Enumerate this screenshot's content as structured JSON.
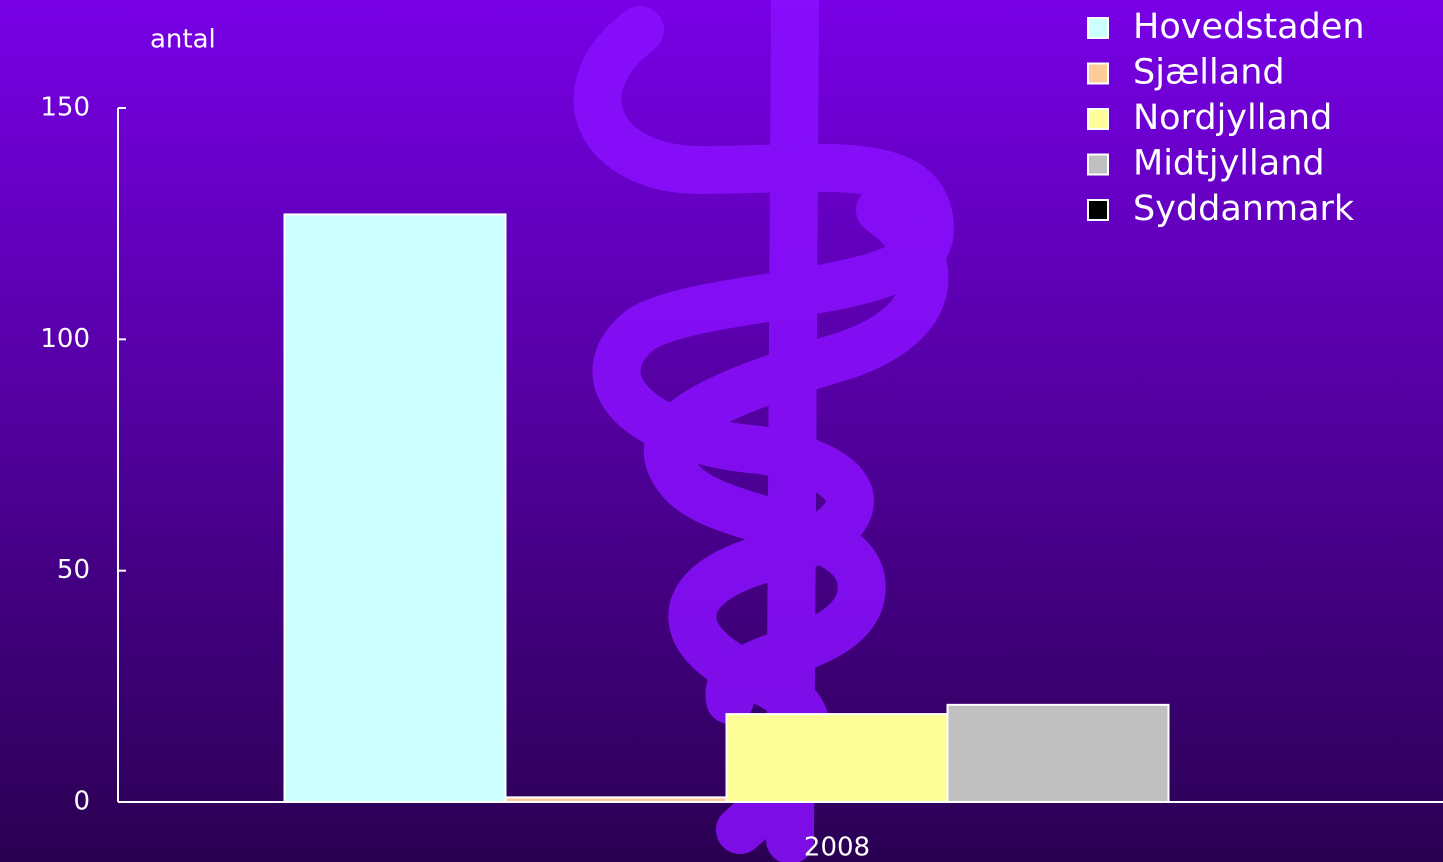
{
  "chart_data": {
    "type": "bar",
    "y_label": "antal",
    "categories": [
      "2008"
    ],
    "series": [
      {
        "name": "Hovedstaden",
        "color": "#ccffff",
        "values": [
          127
        ]
      },
      {
        "name": "Sjælland",
        "color": "#ffcc99",
        "values": [
          1
        ]
      },
      {
        "name": "Nordjylland",
        "color": "#ffff99",
        "values": [
          19
        ]
      },
      {
        "name": "Midtjylland",
        "color": "#c0c0c0",
        "values": [
          21
        ]
      },
      {
        "name": "Syddanmark",
        "color": "#000000",
        "values": [
          0
        ]
      }
    ],
    "ylim": [
      0,
      150
    ],
    "yticks": [
      0,
      50,
      100,
      150
    ],
    "legend": "top-right"
  }
}
